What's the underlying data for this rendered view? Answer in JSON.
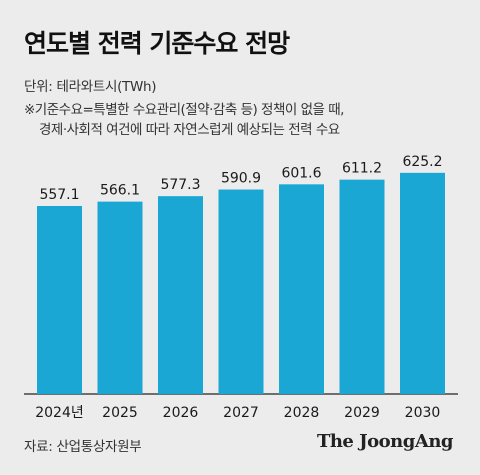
{
  "title": "연도별 전력 기준수요 전망",
  "unit_label": "단위: 테라와트시(TWh)",
  "note_lines": [
    "※기준수요=특별한 수요관리(절약·감축 등) 정책이 없을 때,",
    "경제·사회적 여건에 따라 자연스럽게 예상되는 전력 수요"
  ],
  "source": "자료: 산업통상자원부",
  "logo_text": "The JoongAng",
  "colors": {
    "bar": "#1aa7d4",
    "background": "#ececec",
    "axis": "#222222"
  },
  "chart_data": {
    "type": "bar",
    "categories": [
      "2024년",
      "2025",
      "2026",
      "2027",
      "2028",
      "2029",
      "2030"
    ],
    "values": [
      557.1,
      566.1,
      577.3,
      590.9,
      601.6,
      611.2,
      625.2
    ],
    "value_labels": [
      "557.1",
      "566.1",
      "577.3",
      "590.9",
      "601.6",
      "611.2",
      "625.2"
    ],
    "title": "연도별 전력 기준수요 전망",
    "ylabel": "단위: 테라와트시(TWh)",
    "grid": false,
    "legend": "none"
  }
}
